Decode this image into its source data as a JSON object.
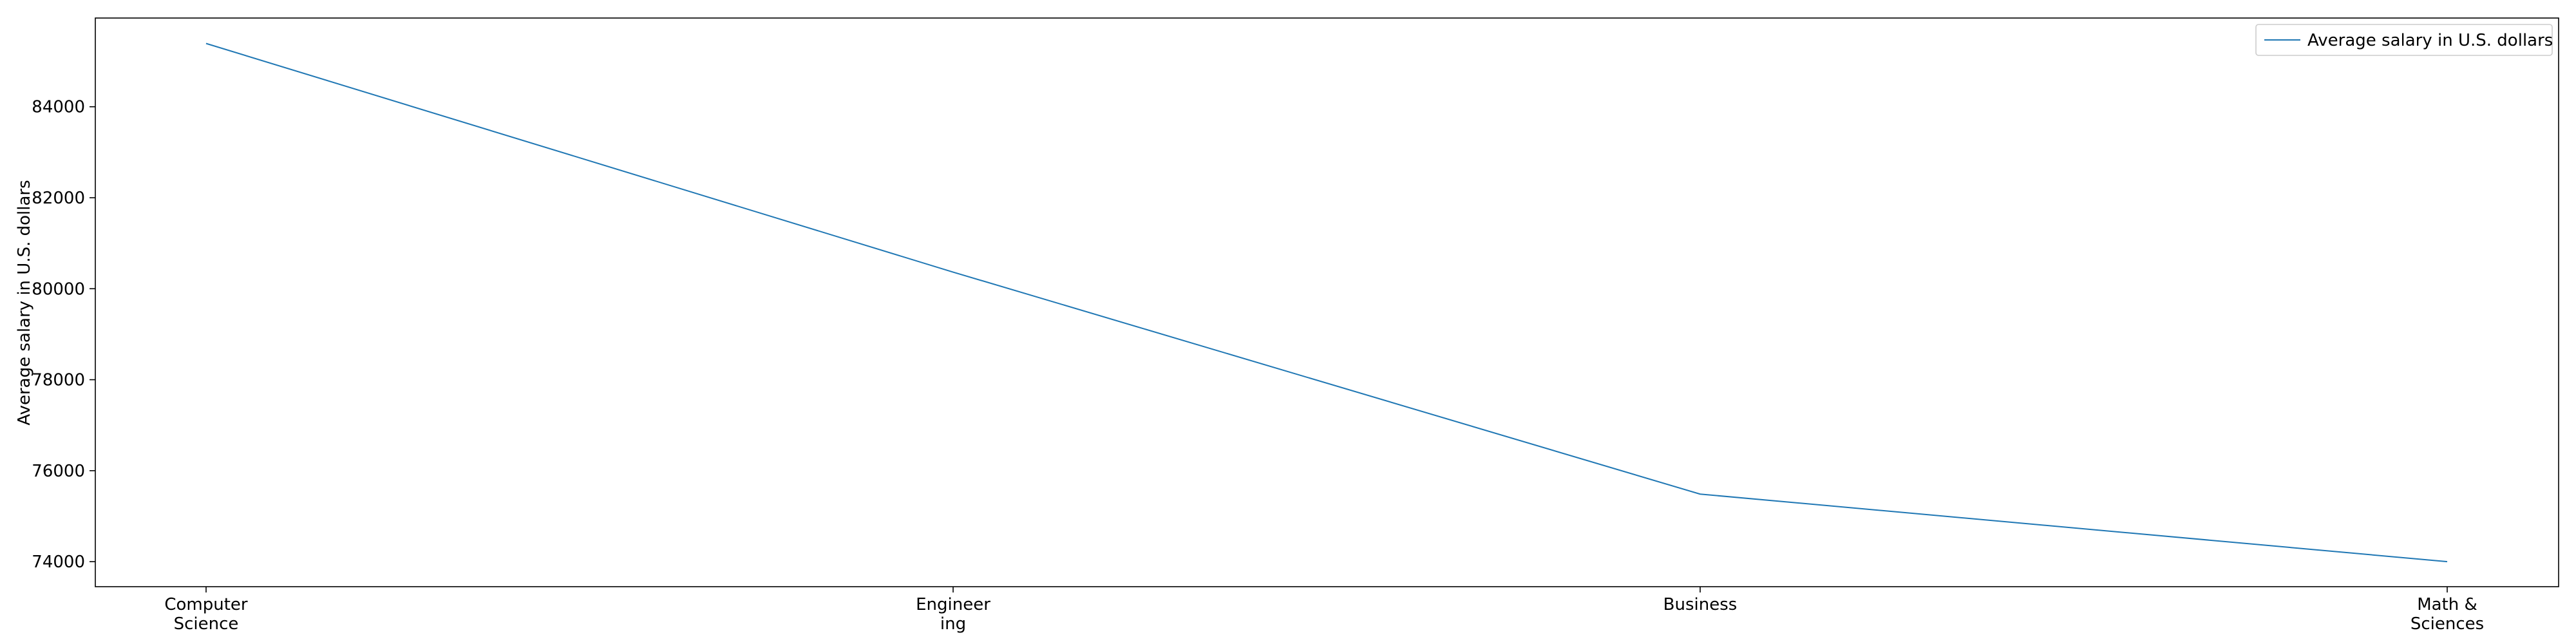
{
  "chart_data": {
    "type": "line",
    "title": "",
    "xlabel": "",
    "ylabel": "Average salary in U.S. dollars",
    "categories": [
      "Computer\nScience",
      "Engineer\ning",
      "Business",
      "Math &\nSciences"
    ],
    "series": [
      {
        "name": "Average salary in U.S. dollars",
        "values": [
          85391,
          80365,
          75485,
          74000
        ],
        "color": "#1f77b4"
      }
    ],
    "ylim": [
      73450,
      85950
    ],
    "yticks": [
      74000,
      76000,
      78000,
      80000,
      82000,
      84000
    ],
    "legend_position": "top-right",
    "grid": false
  }
}
